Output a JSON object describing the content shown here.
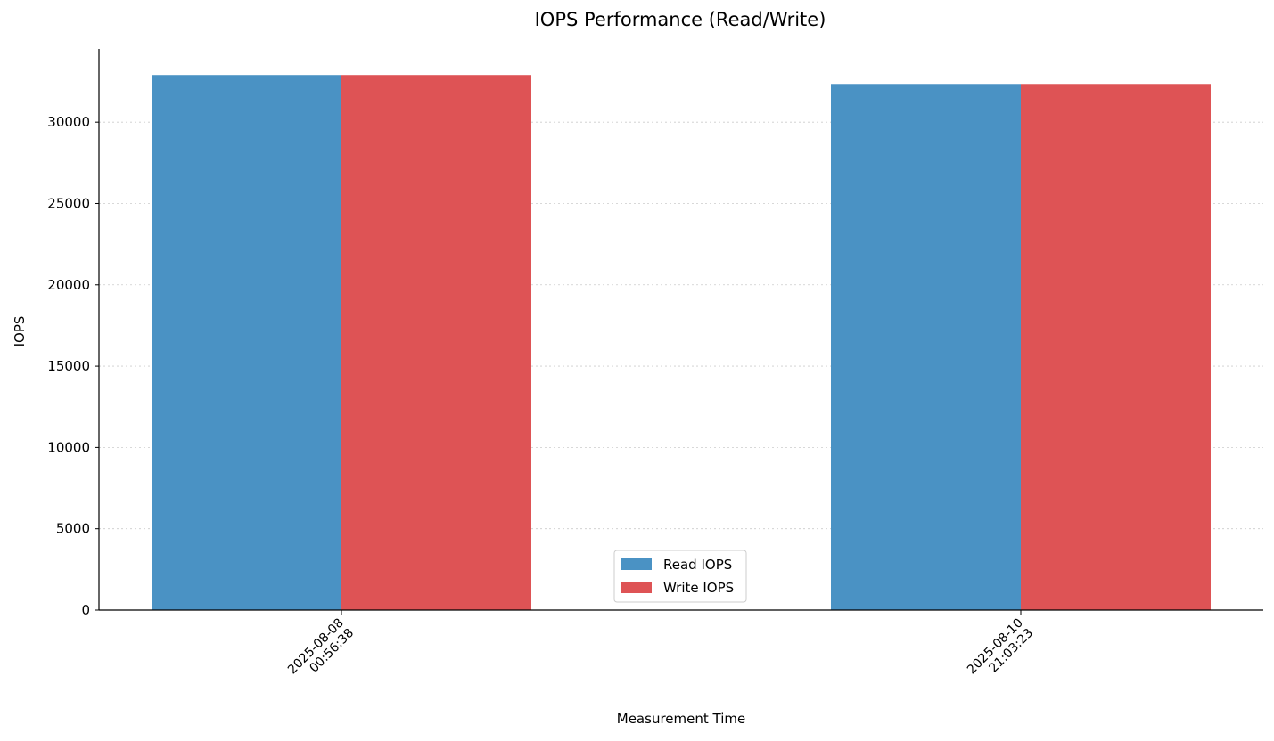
{
  "chart_data": {
    "type": "bar",
    "title": "IOPS Performance (Read/Write)",
    "xlabel": "Measurement Time",
    "ylabel": "IOPS",
    "categories": [
      [
        "2025-08-08",
        "00:56:38"
      ],
      [
        "2025-08-10",
        "21:03:23"
      ]
    ],
    "series": [
      {
        "name": "Read IOPS",
        "color": "#4a92c4",
        "values": [
          32900,
          32350
        ]
      },
      {
        "name": "Write IOPS",
        "color": "#de5355",
        "values": [
          32900,
          32350
        ]
      }
    ],
    "ylim": [
      0,
      34500
    ],
    "yticks": [
      0,
      5000,
      10000,
      15000,
      20000,
      25000,
      30000
    ],
    "grid": true,
    "legend_position": "bottom-center"
  }
}
